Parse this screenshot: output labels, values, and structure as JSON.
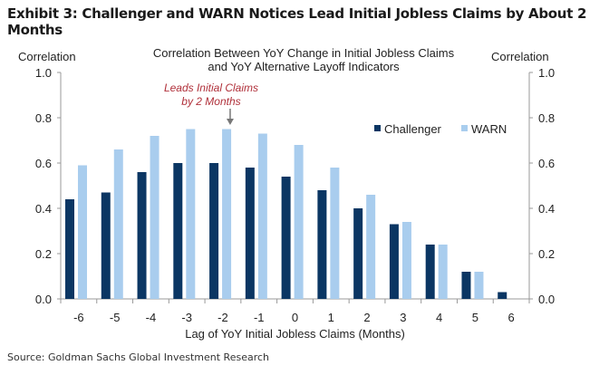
{
  "exhibit_title": "Exhibit 3: Challenger and WARN Notices Lead Initial Jobless Claims by About 2 Months",
  "source": "Source: Goldman Sachs Global Investment Research",
  "chart_data": {
    "type": "bar",
    "title": [
      "Correlation  Between YoY Change in Initial Jobless Claims",
      "and YoY Alternative Layoff Indicators"
    ],
    "ylabel_left": "Correlation",
    "ylabel_right": "Correlation",
    "xlabel": "Lag of YoY Initial Jobless Claims (Months)",
    "categories": [
      "-6",
      "-5",
      "-4",
      "-3",
      "-2",
      "-1",
      "0",
      "1",
      "2",
      "3",
      "4",
      "5",
      "6"
    ],
    "ylim": [
      0,
      1.0
    ],
    "yticks": [
      "0.0",
      "0.2",
      "0.4",
      "0.6",
      "0.8",
      "1.0"
    ],
    "grid": false,
    "legend_position": "top-right",
    "series": [
      {
        "name": "Challenger",
        "color": "#0b3663",
        "values": [
          0.44,
          0.47,
          0.56,
          0.6,
          0.6,
          0.58,
          0.54,
          0.48,
          0.4,
          0.33,
          0.24,
          0.12,
          0.03
        ]
      },
      {
        "name": "WARN",
        "color": "#a9cdee",
        "values": [
          0.59,
          0.66,
          0.72,
          0.75,
          0.75,
          0.73,
          0.68,
          0.58,
          0.46,
          0.34,
          0.24,
          0.12,
          null
        ]
      }
    ],
    "annotation": {
      "lines": [
        "Leads Initial Claims",
        "by 2 Months"
      ],
      "category": "-2",
      "color": "#b0303a"
    }
  }
}
